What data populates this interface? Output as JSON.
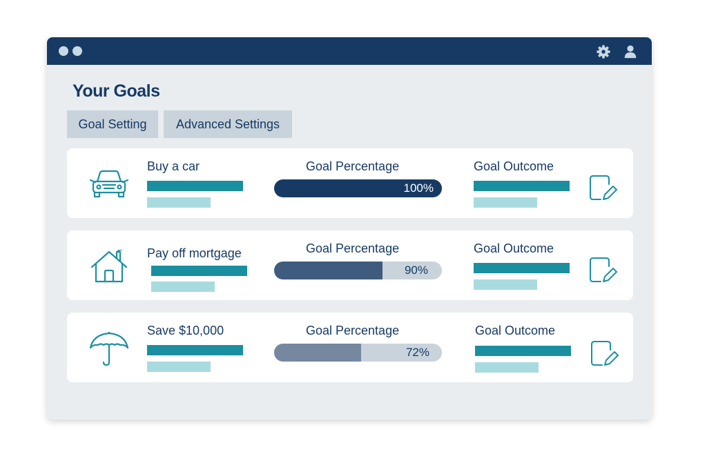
{
  "page": {
    "title": "Your Goals"
  },
  "titlebar": {
    "icons": [
      "window-dot-icon",
      "window-dot-icon",
      "gear-icon",
      "user-icon"
    ]
  },
  "tabs": [
    {
      "label": "Goal Setting"
    },
    {
      "label": "Advanced Settings"
    }
  ],
  "goals": [
    {
      "name": "Buy a car",
      "icon": "car-icon",
      "percentage_label": "Goal Percentage",
      "percentage": 100,
      "percentage_text": "100%",
      "outcome_label": "Goal Outcome",
      "fill_color": "#163a63"
    },
    {
      "name": "Pay off mortgage",
      "icon": "house-icon",
      "percentage_label": "Goal Percentage",
      "percentage": 90,
      "percentage_text": "90%",
      "outcome_label": "Goal Outcome",
      "fill_color": "#3f5b7e"
    },
    {
      "name": "Save $10,000",
      "icon": "umbrella-icon",
      "percentage_label": "Goal Percentage",
      "percentage": 72,
      "percentage_text": "72%",
      "outcome_label": "Goal Outcome",
      "fill_color": "#7687a0"
    }
  ],
  "colors": {
    "navy": "#163a63",
    "teal": "#1a8fa0",
    "light_teal": "#a8dbe0",
    "track": "#c9d3dc",
    "background": "#e9edf0"
  }
}
